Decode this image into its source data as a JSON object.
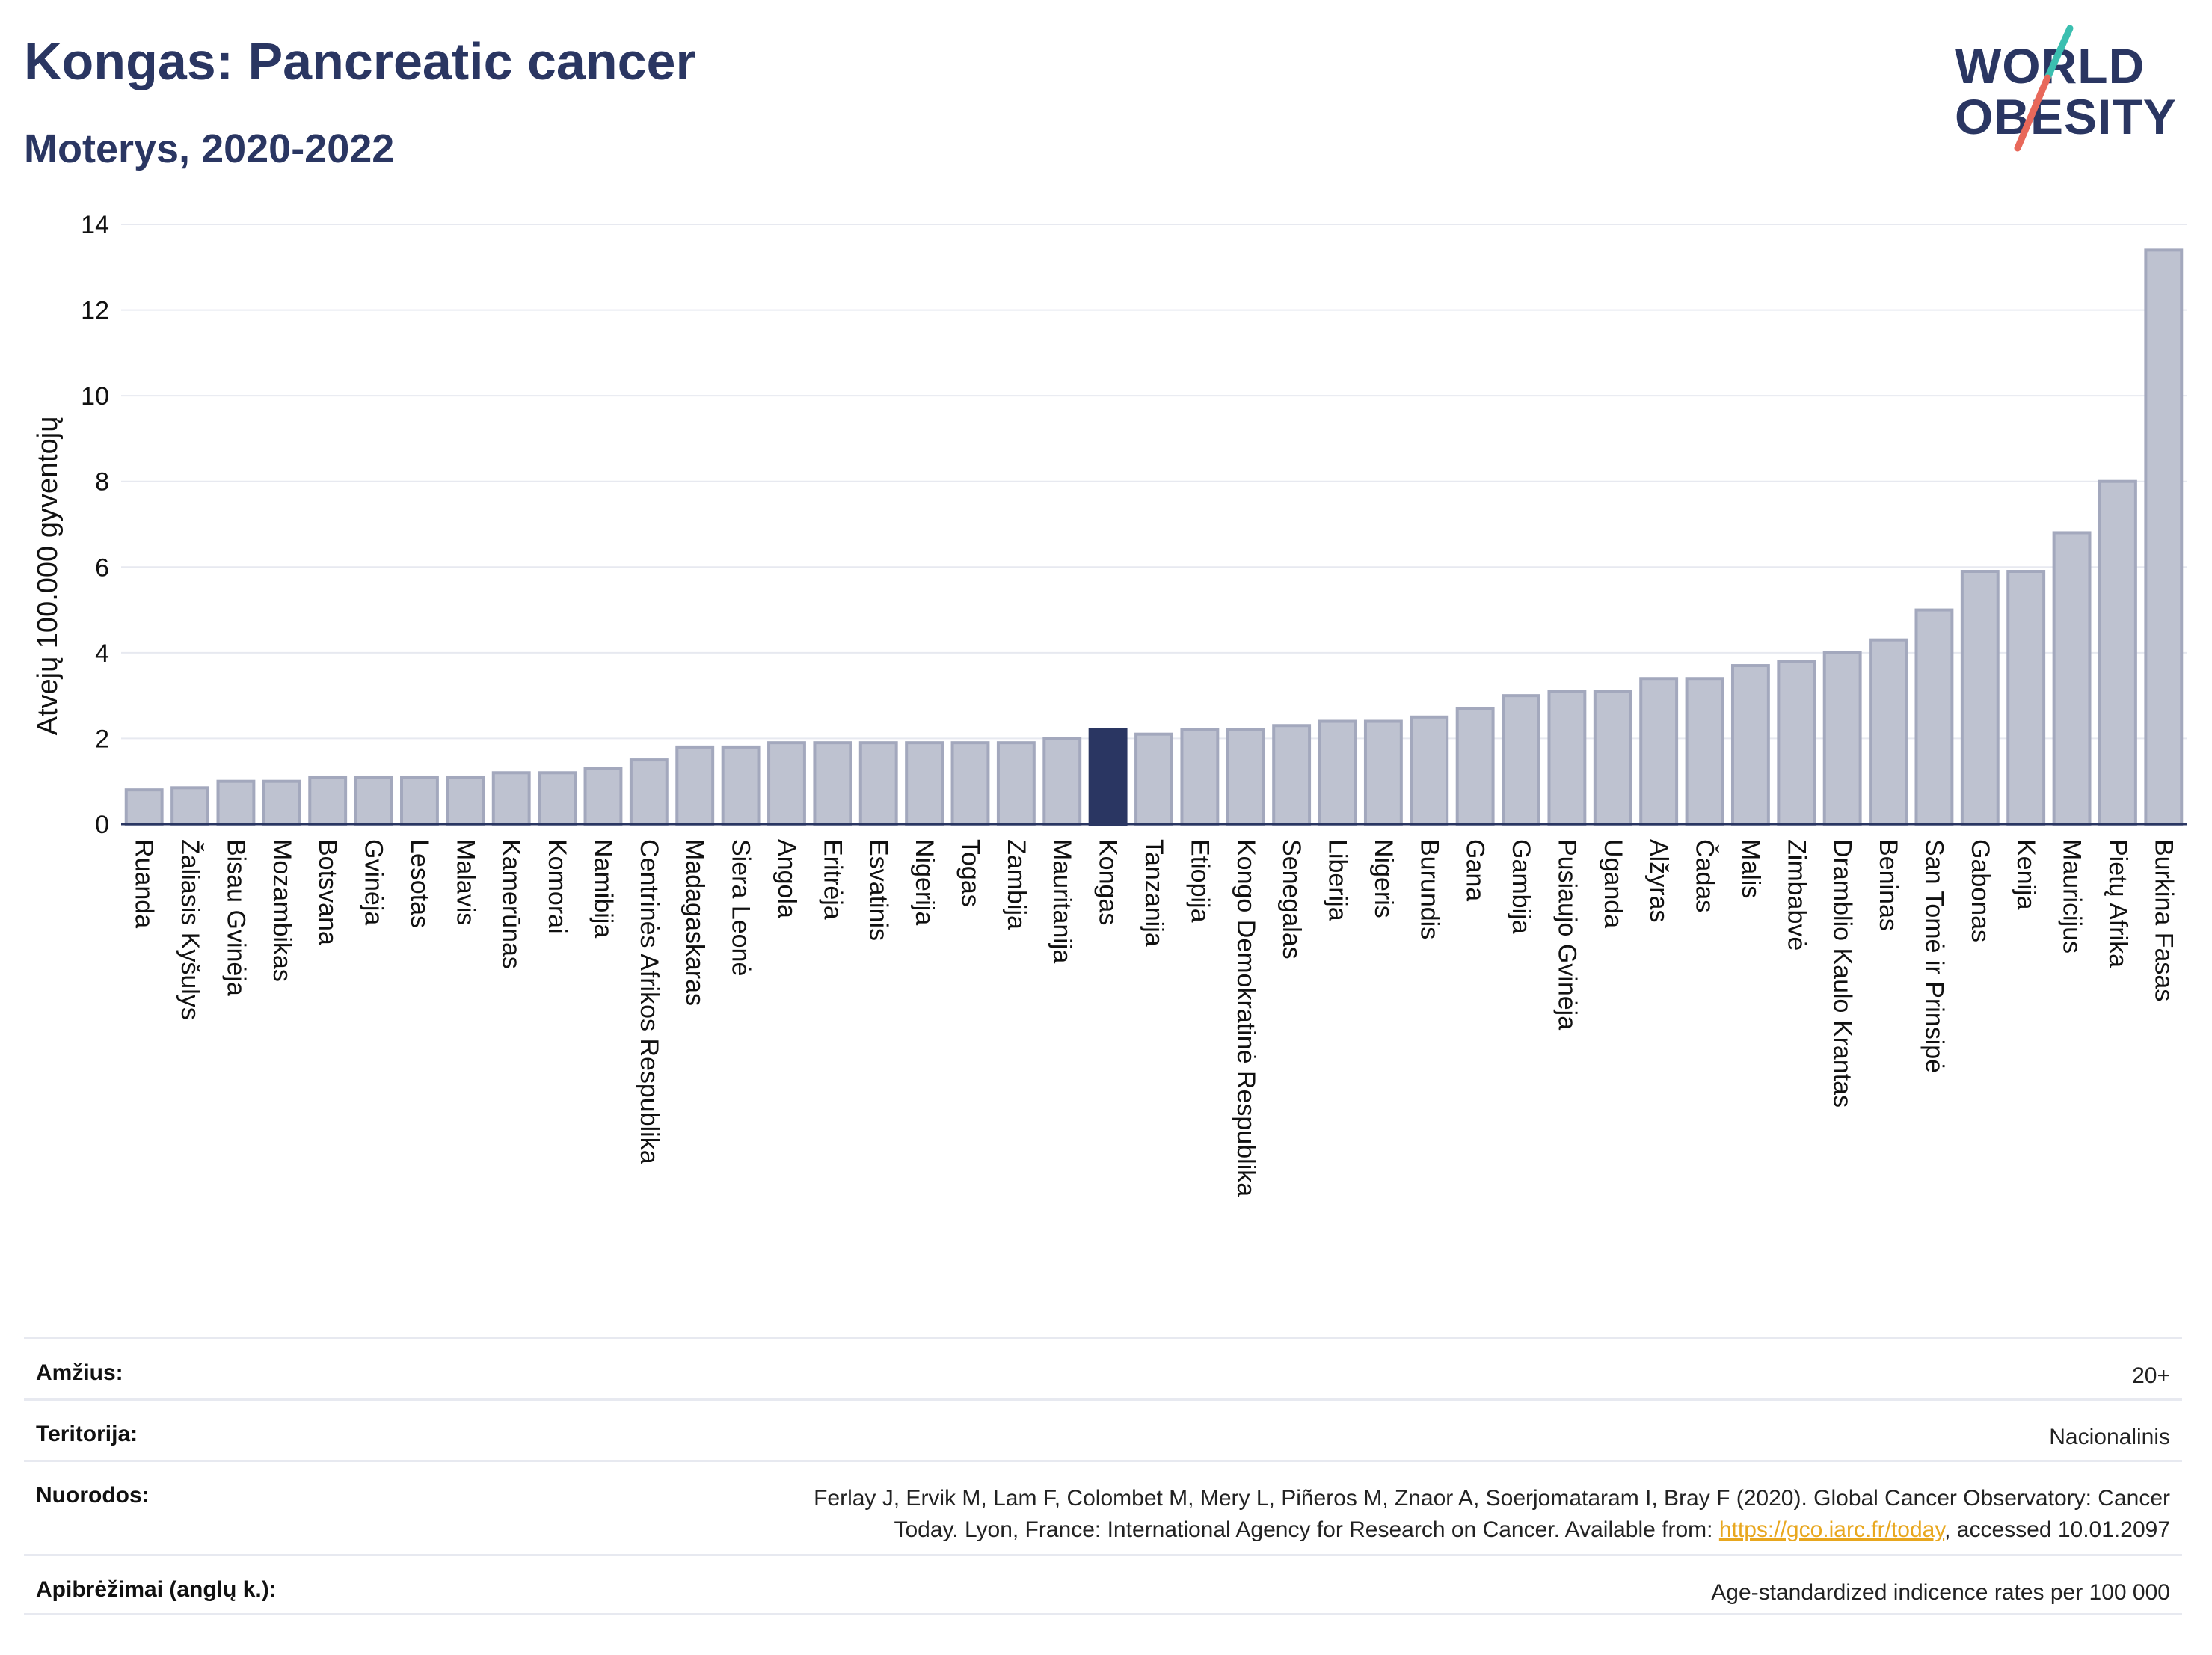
{
  "header": {
    "title": "Kongas: Pancreatic cancer",
    "subtitle": "Moterys, 2020-2022"
  },
  "logo": {
    "line1": "WORLD",
    "line2": "OBESITY",
    "accent_teal": "#3bbfb0",
    "accent_red": "#e8685a"
  },
  "colors": {
    "bar_default": "#bec2d0",
    "bar_default_stroke": "#a3a8bd",
    "bar_highlight": "#2a3662",
    "axis": "#2a3662",
    "grid": "#e7e9f0"
  },
  "chart_data": {
    "type": "bar",
    "ylabel": "Atvejų 100.000 gyventojų",
    "ylim": [
      0,
      14
    ],
    "yticks": [
      0,
      2,
      4,
      6,
      8,
      10,
      12,
      14
    ],
    "grid": true,
    "highlight": "Kongas",
    "categories": [
      "Ruanda",
      "Žaliasis Kyšulys",
      "Bisau Gvinėja",
      "Mozambikas",
      "Botsvana",
      "Gvinėja",
      "Lesotas",
      "Malavis",
      "Kamerūnas",
      "Komorai",
      "Namibija",
      "Centrinės Afrikos Respublika",
      "Madagaskaras",
      "Siera Leonė",
      "Angola",
      "Eritrėja",
      "Esvatinis",
      "Nigerija",
      "Togas",
      "Zambija",
      "Mauritanija",
      "Kongas",
      "Tanzanija",
      "Etiopija",
      "Kongo Demokratinė Respublika",
      "Senegalas",
      "Liberija",
      "Nigeris",
      "Burundis",
      "Gana",
      "Gambija",
      "Pusiaujo Gvinėja",
      "Uganda",
      "Alžyras",
      "Čadas",
      "Malis",
      "Zimbabvė",
      "Dramblio Kaulo Krantas",
      "Beninas",
      "San Tomė ir Prinsipė",
      "Gabonas",
      "Kenija",
      "Mauricijus",
      "Pietų Afrika",
      "Burkina Fasas"
    ],
    "values": [
      0.8,
      0.85,
      1.0,
      1.0,
      1.1,
      1.1,
      1.1,
      1.1,
      1.2,
      1.2,
      1.3,
      1.5,
      1.8,
      1.8,
      1.9,
      1.9,
      1.9,
      1.9,
      1.9,
      1.9,
      2.0,
      2.2,
      2.1,
      2.2,
      2.2,
      2.3,
      2.4,
      2.4,
      2.5,
      2.7,
      3.0,
      3.1,
      3.1,
      3.4,
      3.4,
      3.7,
      3.8,
      4.0,
      4.3,
      5.0,
      5.9,
      5.9,
      6.8,
      8.0,
      13.4
    ]
  },
  "info": {
    "rows": [
      {
        "label": "Amžius:",
        "value": "20+"
      },
      {
        "label": "Teritorija:",
        "value": "Nacionalinis"
      },
      {
        "label": "Nuorodos:",
        "value_line1": "Ferlay J, Ervik M, Lam F, Colombet M, Mery L, Piñeros M, Znaor A, Soerjomataram I, Bray F (2020). Global Cancer Observatory: Cancer",
        "value_line2_pre": "Today. Lyon, France: International Agency for Research on Cancer. Available from: ",
        "value_link": "https://gco.iarc.fr/today",
        "value_line2_post": ", accessed 10.01.2097"
      },
      {
        "label": "Apibrėžimai (anglų k.):",
        "value": "Age-standardized indicence rates per 100 000"
      }
    ]
  }
}
